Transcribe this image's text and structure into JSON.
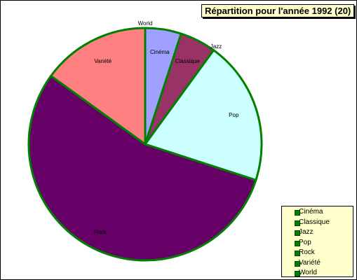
{
  "chart_data": {
    "type": "pie",
    "title": "Répartition pour l'année 1992 (20)",
    "categories": [
      "World",
      "Cinéma",
      "Classique",
      "Jazz",
      "Pop",
      "Rock",
      "Variété"
    ],
    "values": [
      0,
      1,
      1,
      0,
      4,
      11,
      3
    ],
    "colors": [
      "#ffcc99",
      "#a0a0ff",
      "#993366",
      "#ffff99",
      "#ccffff",
      "#660066",
      "#ff8080"
    ],
    "legend_categories": [
      "Cinéma",
      "Classique",
      "Jazz",
      "Pop",
      "Rock",
      "Variété",
      "World"
    ],
    "edge_color": "#008000",
    "legend": "bottom-right"
  }
}
